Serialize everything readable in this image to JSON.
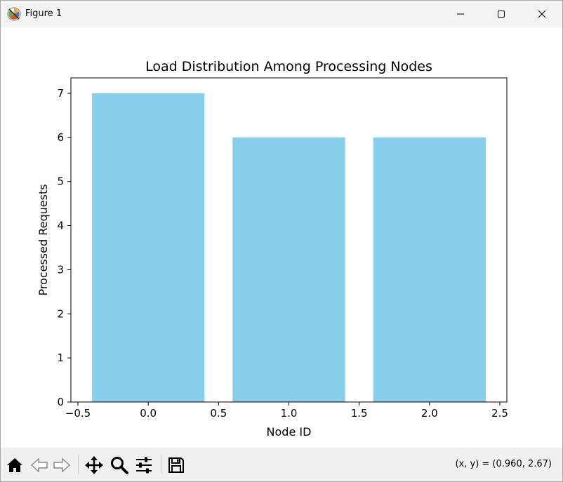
{
  "window": {
    "title": "Figure 1",
    "icon": "matplotlib-icon",
    "controls": [
      "minimize-icon",
      "maximize-icon",
      "close-icon"
    ]
  },
  "toolbar": {
    "buttons": [
      "home-icon",
      "back-icon",
      "forward-icon",
      "pan-icon",
      "zoom-icon",
      "configure-subplots-icon",
      "save-icon"
    ],
    "coords_text": "(x, y) = (0.960, 2.67)"
  },
  "chart_data": {
    "type": "bar",
    "title": "Load Distribution Among Processing Nodes",
    "xlabel": "Node ID",
    "ylabel": "Processed Requests",
    "x": [
      0,
      1,
      2
    ],
    "values": [
      7,
      6,
      6
    ],
    "bar_width": 0.8,
    "bar_color": "#87ceeb",
    "xlim": [
      -0.55,
      2.55
    ],
    "ylim": [
      0,
      7.35
    ],
    "xticks": [
      -0.5,
      0.0,
      0.5,
      1.0,
      1.5,
      2.0,
      2.5
    ],
    "xtick_labels": [
      "−0.5",
      "0.0",
      "0.5",
      "1.0",
      "1.5",
      "2.0",
      "2.5"
    ],
    "yticks": [
      0,
      1,
      2,
      3,
      4,
      5,
      6,
      7
    ],
    "ytick_labels": [
      "0",
      "1",
      "2",
      "3",
      "4",
      "5",
      "6",
      "7"
    ],
    "grid": false,
    "legend": "none"
  }
}
